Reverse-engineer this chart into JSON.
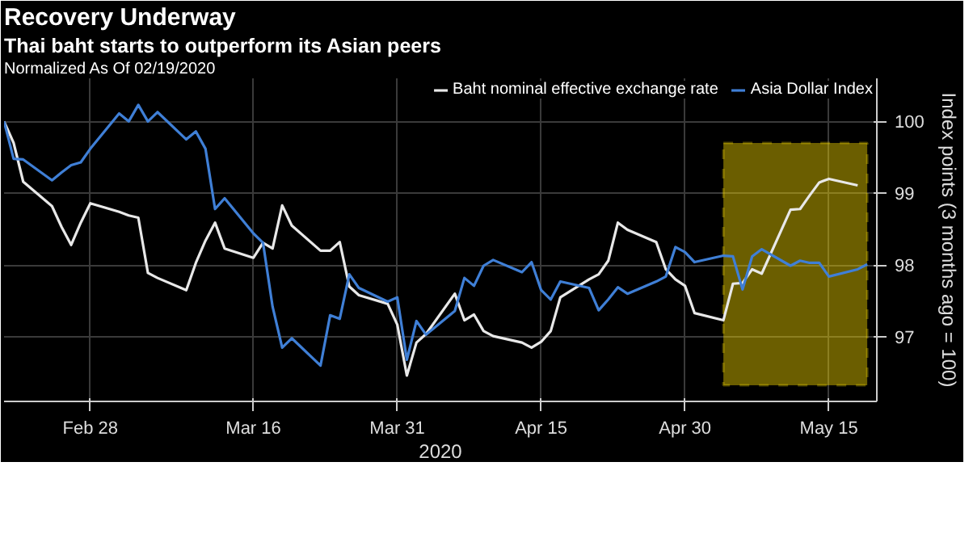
{
  "chart_data": {
    "type": "line",
    "title": "Recovery Underway",
    "subtitle": "Thai baht starts to outperform its Asian peers",
    "legend_title": "Normalized As Of 02/19/2020",
    "xlabel": "2020",
    "ylabel": "Index points (3 months ago = 100)",
    "x": [
      "2020-02-19",
      "2020-02-20",
      "2020-02-21",
      "2020-02-24",
      "2020-02-25",
      "2020-02-26",
      "2020-02-27",
      "2020-02-28",
      "2020-03-02",
      "2020-03-03",
      "2020-03-04",
      "2020-03-05",
      "2020-03-06",
      "2020-03-09",
      "2020-03-10",
      "2020-03-11",
      "2020-03-12",
      "2020-03-13",
      "2020-03-16",
      "2020-03-17",
      "2020-03-18",
      "2020-03-19",
      "2020-03-20",
      "2020-03-23",
      "2020-03-24",
      "2020-03-25",
      "2020-03-26",
      "2020-03-27",
      "2020-03-30",
      "2020-03-31",
      "2020-04-01",
      "2020-04-02",
      "2020-04-03",
      "2020-04-06",
      "2020-04-07",
      "2020-04-08",
      "2020-04-09",
      "2020-04-10",
      "2020-04-13",
      "2020-04-14",
      "2020-04-15",
      "2020-04-16",
      "2020-04-17",
      "2020-04-20",
      "2020-04-21",
      "2020-04-22",
      "2020-04-23",
      "2020-04-24",
      "2020-04-27",
      "2020-04-28",
      "2020-04-29",
      "2020-04-30",
      "2020-05-01",
      "2020-05-04",
      "2020-05-05",
      "2020-05-06",
      "2020-05-07",
      "2020-05-08",
      "2020-05-11",
      "2020-05-12",
      "2020-05-13",
      "2020-05-14",
      "2020-05-15",
      "2020-05-18",
      "2020-05-19"
    ],
    "series": [
      {
        "name": "Baht nominal effective exchange rate",
        "color": "#e8e8e8",
        "values": [
          100,
          99.7,
          99.16,
          98.82,
          98.53,
          98.28,
          98.59,
          98.86,
          98.74,
          98.69,
          98.66,
          97.89,
          97.82,
          97.65,
          98.03,
          98.34,
          98.59,
          98.23,
          98.1,
          98.31,
          98.23,
          98.83,
          98.55,
          98.2,
          98.2,
          98.32,
          97.7,
          97.58,
          97.46,
          97.17,
          96.46,
          96.92,
          97.04,
          97.6,
          97.23,
          97.31,
          97.08,
          97.01,
          96.92,
          96.85,
          96.93,
          97.08,
          97.55,
          97.8,
          97.87,
          98.06,
          98.59,
          98.49,
          98.32,
          97.94,
          97.8,
          97.71,
          97.33,
          97.23,
          97.74,
          97.75,
          97.94,
          97.88,
          98.77,
          98.78,
          98.97,
          99.15,
          99.2,
          99.11,
          null
        ]
      },
      {
        "name": "Asia Dollar Index",
        "color": "#3f7fd6",
        "values": [
          100,
          99.48,
          99.47,
          99.18,
          99.29,
          99.39,
          99.43,
          99.62,
          100.11,
          100,
          100.23,
          100,
          100.13,
          99.75,
          99.86,
          99.62,
          98.78,
          98.93,
          98.44,
          98.31,
          97.42,
          96.85,
          96.98,
          96.6,
          97.3,
          97.25,
          97.87,
          97.68,
          97.49,
          97.55,
          96.68,
          97.22,
          97.03,
          97.36,
          97.82,
          97.71,
          97.99,
          98.07,
          97.9,
          98.04,
          97.65,
          97.52,
          97.77,
          97.68,
          97.37,
          97.52,
          97.69,
          97.6,
          97.77,
          97.84,
          98.25,
          98.18,
          98.04,
          98.13,
          98.12,
          97.66,
          98.12,
          98.22,
          97.99,
          98.06,
          98.03,
          98.03,
          97.84,
          97.94,
          98.01
        ]
      }
    ],
    "xlim": [
      "2020-02-19",
      "2020-05-20"
    ],
    "xticks": [
      {
        "value": "2020-02-28",
        "label": "Feb 28"
      },
      {
        "value": "2020-03-16",
        "label": "Mar 16"
      },
      {
        "value": "2020-03-31",
        "label": "Mar 31"
      },
      {
        "value": "2020-04-15",
        "label": "Apr 15"
      },
      {
        "value": "2020-04-30",
        "label": "Apr 30"
      },
      {
        "value": "2020-05-15",
        "label": "May 15"
      }
    ],
    "ylim": [
      96.1,
      100.6
    ],
    "yticks": [
      97,
      98,
      99,
      100
    ],
    "bands": [
      {
        "axis": "x",
        "from": "2020-05-04",
        "to": "2020-05-19",
        "color": "#ffe100"
      }
    ],
    "grid": true,
    "legend": "top right",
    "marker": "none",
    "line_style": "solid"
  }
}
